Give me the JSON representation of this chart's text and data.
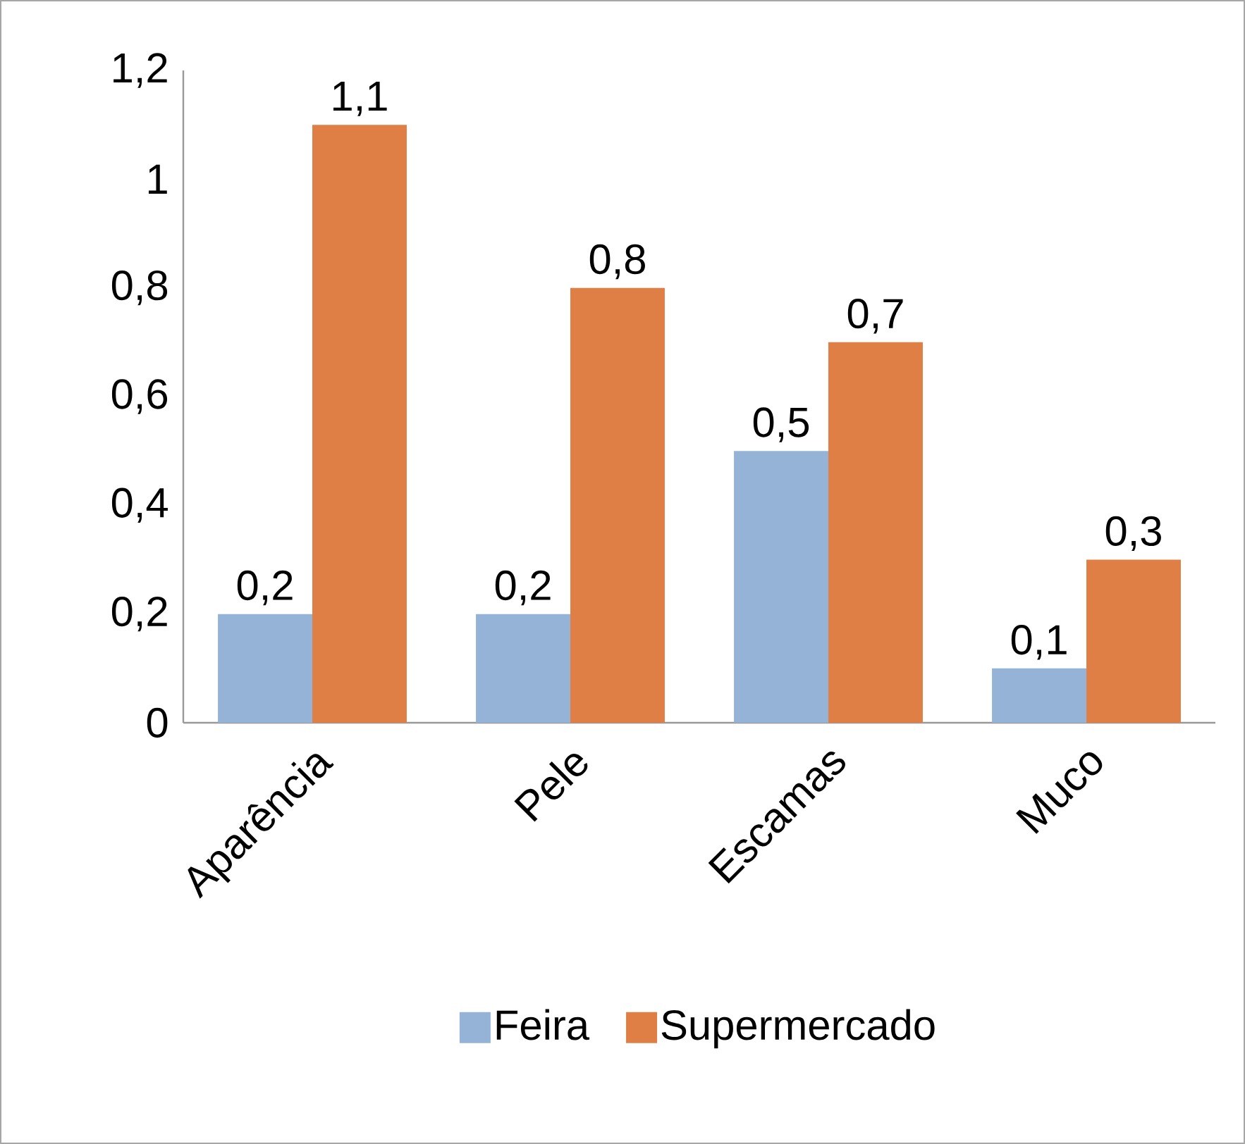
{
  "chart_data": {
    "type": "bar",
    "categories": [
      "Aparência",
      "Pele",
      "Escamas",
      "Muco"
    ],
    "series": [
      {
        "name": "Feira",
        "color": "#95b3d7",
        "values": [
          0.2,
          0.2,
          0.5,
          0.1
        ],
        "value_labels": [
          "0,2",
          "0,2",
          "0,5",
          "0,1"
        ]
      },
      {
        "name": "Supermercado",
        "color": "#e07f45",
        "values": [
          1.1,
          0.8,
          0.7,
          0.3
        ],
        "value_labels": [
          "1,1",
          "0,8",
          "0,7",
          "0,3"
        ]
      }
    ],
    "ylim": [
      0,
      1.2
    ],
    "yticks": [
      {
        "value": 0,
        "label": "0"
      },
      {
        "value": 0.2,
        "label": "0,2"
      },
      {
        "value": 0.4,
        "label": "0,4"
      },
      {
        "value": 0.6,
        "label": "0,6"
      },
      {
        "value": 0.8,
        "label": "0,8"
      },
      {
        "value": 1,
        "label": "1"
      },
      {
        "value": 1.2,
        "label": "1,2"
      }
    ],
    "grid": false,
    "legend": "bottom"
  }
}
